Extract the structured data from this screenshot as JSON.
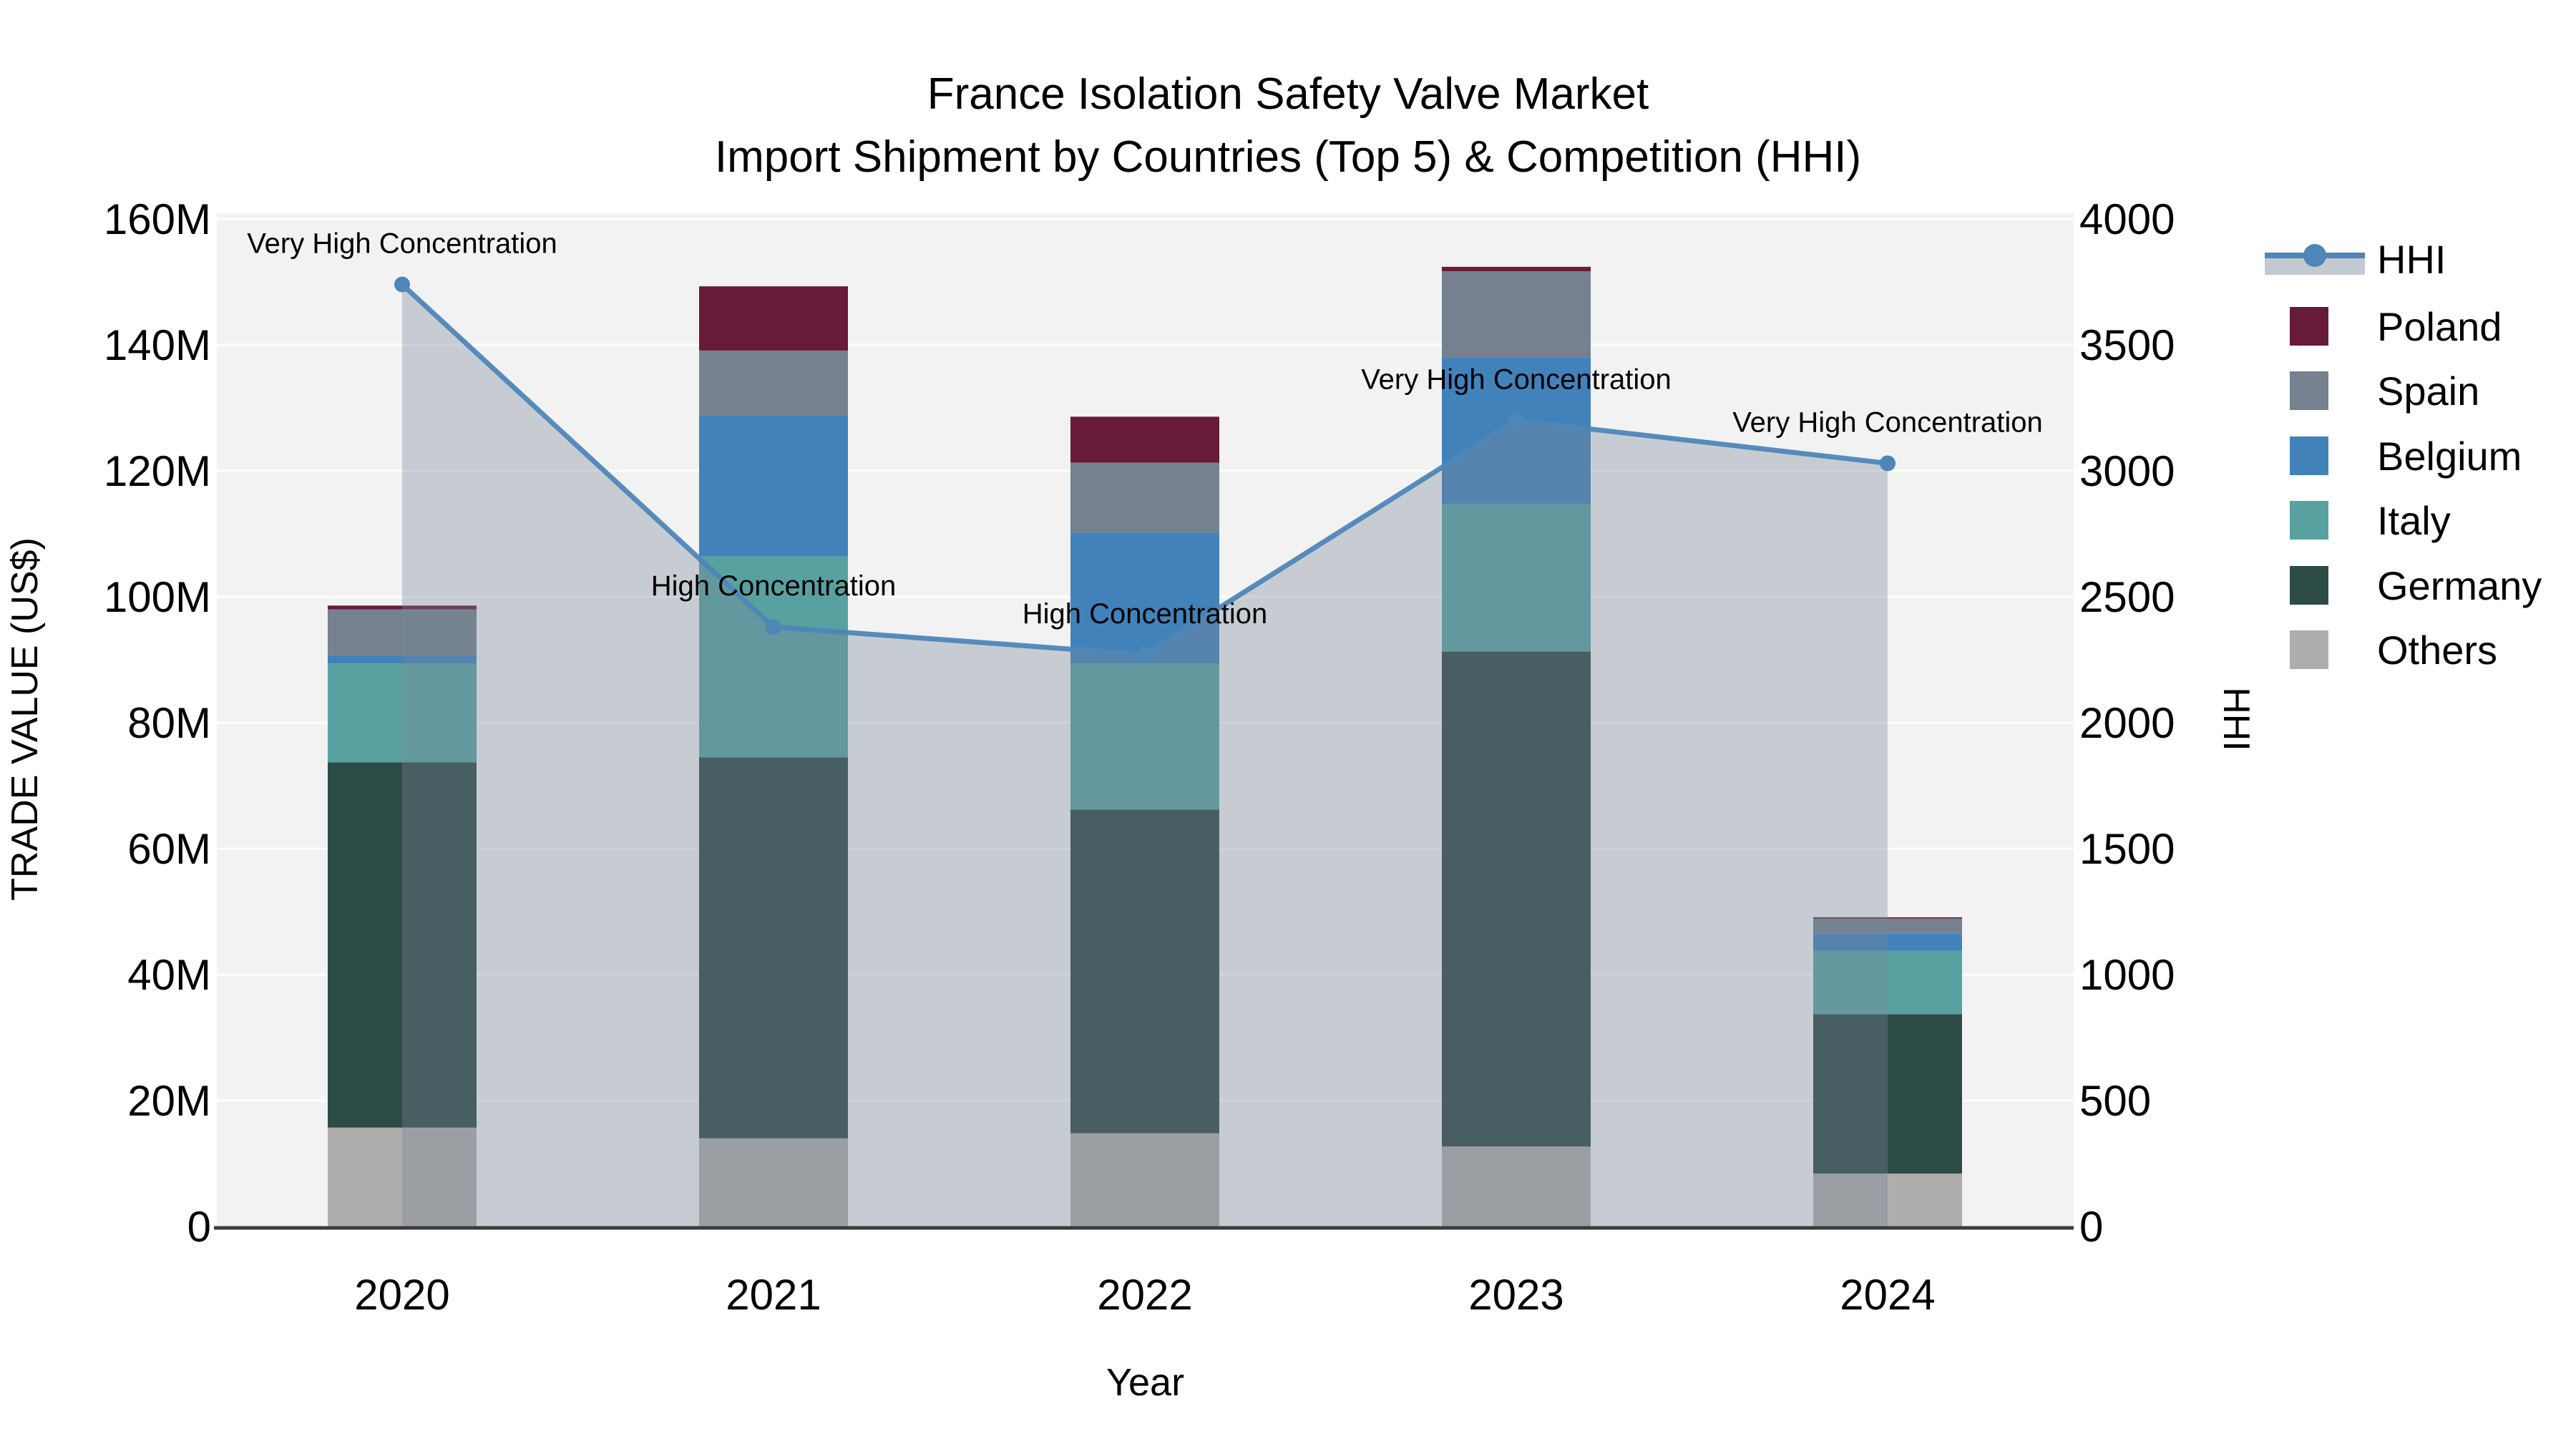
{
  "chart_data": {
    "type": "combo-stacked-bar-with-line-area",
    "title_line1": "France Isolation Safety Valve Market",
    "title_line2": "Import Shipment by Countries (Top 5) & Competition (HHI)",
    "xlabel": "Year",
    "ylabel_left": "TRADE VALUE (US$)",
    "ylabel_right": "HHI",
    "categories": [
      "2020",
      "2021",
      "2022",
      "2023",
      "2024"
    ],
    "stack_order_bottom_to_top": [
      "Others",
      "Germany",
      "Italy",
      "Belgium",
      "Spain",
      "Poland"
    ],
    "series": [
      {
        "name": "Others",
        "values_musd": [
          15.7,
          14.0,
          14.8,
          12.7,
          8.4
        ]
      },
      {
        "name": "Germany",
        "values_musd": [
          58.0,
          60.5,
          51.4,
          78.6,
          25.3
        ]
      },
      {
        "name": "Italy",
        "values_musd": [
          15.7,
          31.9,
          23.2,
          23.4,
          10.1
        ]
      },
      {
        "name": "Belgium",
        "values_musd": [
          1.3,
          22.4,
          20.8,
          23.3,
          2.7
        ]
      },
      {
        "name": "Spain",
        "values_musd": [
          7.3,
          10.3,
          11.1,
          13.7,
          2.4
        ]
      },
      {
        "name": "Poland",
        "values_musd": [
          0.6,
          10.2,
          7.3,
          0.7,
          0.2
        ]
      }
    ],
    "hhi_series": {
      "name": "HHI",
      "values": [
        3740,
        2380,
        2270,
        3200,
        3030
      ]
    },
    "annotations": [
      {
        "category": "2020",
        "text": "Very High Concentration"
      },
      {
        "category": "2021",
        "text": "High Concentration"
      },
      {
        "category": "2022",
        "text": "High Concentration"
      },
      {
        "category": "2023",
        "text": "Very High Concentration"
      },
      {
        "category": "2024",
        "text": "Very High Concentration"
      }
    ],
    "y_left_axis": {
      "min_musd": 0,
      "max_musd": 160,
      "tick_step_musd": 20,
      "tick_labels": [
        "0",
        "20M",
        "40M",
        "60M",
        "80M",
        "100M",
        "120M",
        "140M",
        "160M"
      ]
    },
    "y_right_axis": {
      "min": 0,
      "max": 4000,
      "tick_step": 500,
      "tick_labels": [
        "0",
        "500",
        "1000",
        "1500",
        "2000",
        "2500",
        "3000",
        "3500",
        "4000"
      ]
    },
    "legend_order": [
      "HHI",
      "Poland",
      "Spain",
      "Belgium",
      "Italy",
      "Germany",
      "Others"
    ],
    "legend_position": "right",
    "grid": true,
    "colors": {
      "Poland": "#681a39",
      "Spain": "#75818e",
      "Belgium": "#4282ba",
      "Italy": "#58a1a1",
      "Germany": "#2d4b47",
      "Others": "#aeadab",
      "hhi_line": "#4e86b8",
      "hhi_area_fill": "#778899",
      "hhi_area_opacity": 0.35,
      "plot_background": "#f2f2f2",
      "gridline": "#ffffff",
      "axis_line": "#3c3c3c",
      "text": "#000000"
    }
  }
}
